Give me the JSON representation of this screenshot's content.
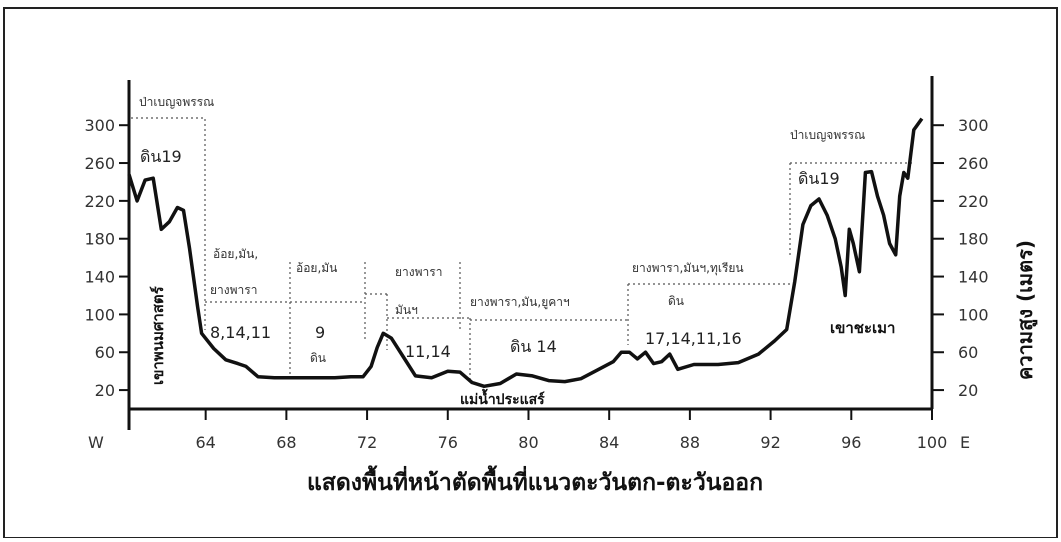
{
  "chart_data": {
    "type": "line",
    "title": "แสดงพื้นที่หน้าตัดพื้นที่แนวตะวันตก-ตะวันออก",
    "xlabel_left": "W",
    "xlabel_right": "E",
    "ylabel_right": "ความสูง (เมตร)",
    "x_ticks": [
      64,
      68,
      72,
      76,
      80,
      84,
      88,
      92,
      96,
      100
    ],
    "y_ticks_left": [
      20,
      60,
      100,
      140,
      180,
      220,
      260,
      300
    ],
    "y_ticks_right": [
      20,
      60,
      100,
      140,
      180,
      220,
      260,
      300
    ],
    "xlim": [
      60.2,
      100
    ],
    "ylim": [
      0,
      330
    ],
    "grid": false,
    "series": [
      {
        "x": [
          60.2,
          60.6,
          61.0,
          61.4,
          61.8,
          62.2,
          62.6,
          62.9,
          63.2,
          63.6,
          63.8,
          64.4,
          65.0,
          65.6,
          66.0,
          66.6,
          67.4,
          68.4,
          69.4,
          70.4,
          71.2,
          71.8,
          72.2,
          72.5,
          72.8,
          73.2,
          73.8,
          74.4,
          75.2,
          76.0,
          76.6,
          77.2,
          77.8,
          78.6,
          79.4,
          80.2,
          81.0,
          81.8,
          82.6,
          83.4,
          84.2,
          84.6,
          85.0,
          85.4,
          85.8,
          86.2,
          86.6,
          87.0,
          87.4,
          88.2,
          89.4,
          90.4,
          91.4,
          92.2,
          92.8,
          93.2,
          93.6,
          94.0,
          94.4,
          94.8,
          95.2,
          95.5,
          95.7,
          95.9,
          96.1,
          96.4,
          96.7,
          97.0,
          97.3,
          97.6,
          97.9,
          98.2,
          98.4,
          98.6,
          98.8,
          99.1,
          99.5
        ],
        "values": [
          248,
          220,
          242,
          244,
          190,
          198,
          213,
          210,
          170,
          108,
          80,
          64,
          52,
          48,
          45,
          34,
          33,
          33,
          33,
          33,
          34,
          34,
          45,
          65,
          80,
          75,
          55,
          35,
          33,
          40,
          39,
          28,
          24,
          27,
          37,
          35,
          30,
          29,
          32,
          41,
          50,
          60,
          60,
          53,
          60,
          48,
          50,
          58,
          42,
          47,
          47,
          49,
          58,
          72,
          84,
          135,
          195,
          215,
          222,
          205,
          180,
          150,
          120,
          190,
          175,
          145,
          250,
          251,
          225,
          205,
          175,
          163,
          225,
          250,
          244,
          295,
          307
        ]
      }
    ],
    "annotations": {
      "zone1": {
        "veg": "ป่าเบญจพรรณ",
        "soil": "ดิน19"
      },
      "zone2": {
        "crop": "อ้อย,มัน,",
        "crop2": "ยางพารา",
        "soil": "8,14,11"
      },
      "zone3": {
        "crop": "อ้อย,มัน",
        "soil_num": "9",
        "soil_word": "ดิน"
      },
      "zone4": {
        "crop": "ยางพารา",
        "crop2": "มันฯ",
        "soil": "11,14"
      },
      "zone5": {
        "crop": "ยางพารา,มัน,ยูคาฯ",
        "soil": "ดิน 14"
      },
      "zone6": {
        "crop": "ยางพารา,มันฯ,ทุเรียน",
        "soil_word": "ดิน",
        "soil": "17,14,11,16"
      },
      "zone7": {
        "veg": "ป่าเบญจพรรณ",
        "soil": "ดิน19"
      },
      "mountain_left": "เขาพนมศาสตร์",
      "mountain_right": "เขาชะเมา",
      "river": "แม่น้ำประแสร์"
    }
  }
}
